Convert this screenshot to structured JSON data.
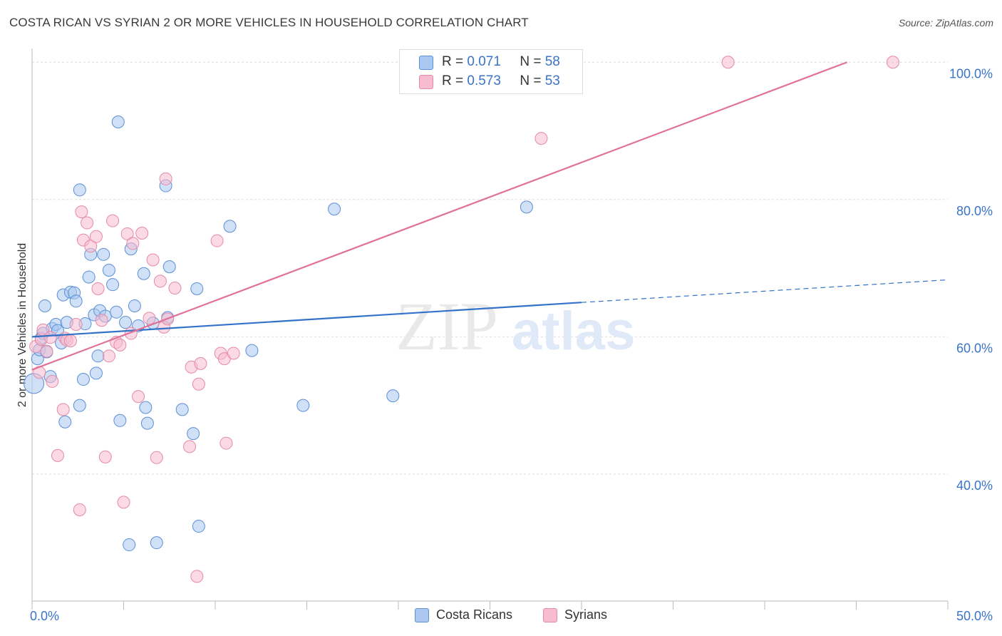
{
  "title": "COSTA RICAN VS SYRIAN 2 OR MORE VEHICLES IN HOUSEHOLD CORRELATION CHART",
  "source": "Source: ZipAtlas.com",
  "watermark": {
    "zip": "ZIP",
    "atlas": "atlas"
  },
  "legend": {
    "r_label": "R =",
    "n_label": "N =",
    "series": [
      {
        "name": "Costa Ricans",
        "r": "0.071",
        "n": "58"
      },
      {
        "name": "Syrians",
        "r": "0.573",
        "n": "53"
      }
    ]
  },
  "chart_data": {
    "type": "scatter",
    "title": "COSTA RICAN VS SYRIAN 2 OR MORE VEHICLES IN HOUSEHOLD CORRELATION CHART",
    "xlabel": "",
    "ylabel": "2 or more Vehicles in Household",
    "xlim": [
      0,
      50
    ],
    "ylim": [
      21.5,
      102
    ],
    "x_tick_labels": [
      "0.0%",
      "50.0%"
    ],
    "y_ticks": [
      40,
      60,
      80,
      100
    ],
    "y_tick_labels": [
      "40.0%",
      "60.0%",
      "80.0%",
      "100.0%"
    ],
    "grid": true,
    "legend_position": "top-center",
    "colors": {
      "Costa Ricans": {
        "fill": "#aac8f0",
        "stroke": "#5b8fd6",
        "line": "#3272c9"
      },
      "Syrians": {
        "fill": "#f7bcd0",
        "stroke": "#e48aa6",
        "line": "#e07099"
      }
    },
    "series": [
      {
        "name": "Costa Ricans",
        "trend": {
          "x0": 0,
          "y0": 60.0,
          "x1": 30,
          "y1": 65.0,
          "x_dashed_end": 50,
          "y_dashed_end": 68.3
        },
        "points": [
          [
            0.1,
            53.2
          ],
          [
            0.3,
            56.8
          ],
          [
            0.4,
            58.1
          ],
          [
            0.5,
            59.8
          ],
          [
            0.6,
            60.5
          ],
          [
            0.7,
            64.5
          ],
          [
            0.8,
            57.8
          ],
          [
            1.0,
            54.2
          ],
          [
            1.1,
            61.2
          ],
          [
            1.3,
            61.8
          ],
          [
            1.4,
            60.9
          ],
          [
            1.6,
            59.1
          ],
          [
            1.7,
            66.1
          ],
          [
            1.8,
            47.6
          ],
          [
            1.9,
            62.1
          ],
          [
            2.1,
            66.5
          ],
          [
            2.3,
            66.4
          ],
          [
            2.4,
            65.2
          ],
          [
            2.6,
            81.4
          ],
          [
            2.6,
            50.0
          ],
          [
            2.8,
            53.8
          ],
          [
            2.9,
            61.9
          ],
          [
            3.1,
            68.7
          ],
          [
            3.2,
            72.0
          ],
          [
            3.4,
            63.2
          ],
          [
            3.5,
            54.7
          ],
          [
            3.6,
            57.2
          ],
          [
            3.7,
            63.8
          ],
          [
            3.9,
            72.0
          ],
          [
            4.0,
            63.0
          ],
          [
            4.2,
            69.7
          ],
          [
            4.4,
            67.6
          ],
          [
            4.6,
            63.6
          ],
          [
            4.7,
            91.3
          ],
          [
            4.8,
            47.8
          ],
          [
            5.1,
            62.1
          ],
          [
            5.3,
            29.7
          ],
          [
            5.4,
            72.8
          ],
          [
            5.6,
            64.5
          ],
          [
            5.8,
            61.6
          ],
          [
            6.1,
            69.2
          ],
          [
            6.2,
            49.7
          ],
          [
            6.3,
            47.4
          ],
          [
            6.6,
            62.0
          ],
          [
            6.8,
            30.0
          ],
          [
            7.3,
            82.0
          ],
          [
            7.4,
            62.8
          ],
          [
            7.5,
            70.2
          ],
          [
            8.2,
            49.4
          ],
          [
            8.8,
            45.9
          ],
          [
            9.0,
            67.0
          ],
          [
            9.1,
            32.4
          ],
          [
            10.8,
            76.1
          ],
          [
            12.0,
            58.0
          ],
          [
            14.8,
            50.0
          ],
          [
            16.5,
            78.6
          ],
          [
            19.7,
            51.4
          ],
          [
            27.0,
            78.9
          ]
        ]
      },
      {
        "name": "Syrians",
        "trend": {
          "x0": 0,
          "y0": 55.2,
          "x1": 44.5,
          "y1": 100.0
        },
        "points": [
          [
            0.2,
            58.6
          ],
          [
            0.4,
            54.8
          ],
          [
            0.5,
            59.6
          ],
          [
            0.6,
            61.0
          ],
          [
            0.8,
            57.9
          ],
          [
            1.0,
            59.9
          ],
          [
            1.1,
            53.5
          ],
          [
            1.4,
            42.7
          ],
          [
            1.7,
            49.4
          ],
          [
            1.8,
            59.8
          ],
          [
            1.9,
            59.5
          ],
          [
            2.1,
            59.4
          ],
          [
            2.4,
            61.8
          ],
          [
            2.6,
            34.8
          ],
          [
            2.7,
            78.2
          ],
          [
            2.8,
            74.1
          ],
          [
            3.0,
            76.6
          ],
          [
            3.2,
            73.2
          ],
          [
            3.5,
            74.6
          ],
          [
            3.6,
            67.0
          ],
          [
            3.8,
            62.4
          ],
          [
            4.0,
            42.5
          ],
          [
            4.2,
            57.2
          ],
          [
            4.4,
            76.9
          ],
          [
            4.6,
            59.2
          ],
          [
            4.8,
            58.8
          ],
          [
            5.0,
            35.9
          ],
          [
            5.2,
            75.0
          ],
          [
            5.4,
            60.5
          ],
          [
            5.5,
            73.6
          ],
          [
            5.8,
            51.3
          ],
          [
            6.0,
            75.1
          ],
          [
            6.4,
            62.7
          ],
          [
            6.6,
            71.2
          ],
          [
            6.8,
            42.4
          ],
          [
            7.0,
            68.1
          ],
          [
            7.2,
            61.4
          ],
          [
            7.3,
            83.0
          ],
          [
            7.4,
            62.6
          ],
          [
            7.8,
            67.1
          ],
          [
            8.6,
            44.0
          ],
          [
            8.7,
            55.6
          ],
          [
            9.0,
            25.1
          ],
          [
            9.1,
            53.1
          ],
          [
            9.2,
            56.1
          ],
          [
            10.1,
            74.0
          ],
          [
            10.3,
            57.6
          ],
          [
            10.5,
            56.8
          ],
          [
            10.6,
            44.5
          ],
          [
            11.0,
            57.6
          ],
          [
            27.8,
            88.9
          ],
          [
            38.0,
            100.0
          ],
          [
            47.0,
            100.0
          ]
        ]
      }
    ]
  }
}
